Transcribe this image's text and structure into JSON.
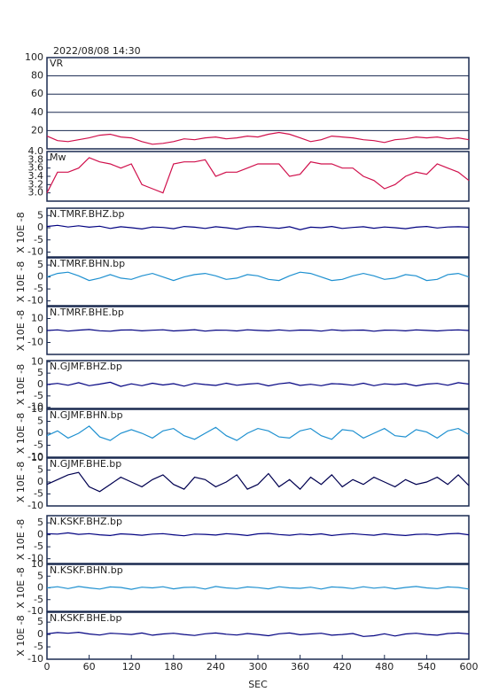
{
  "chart_data": [
    {
      "type": "line",
      "title": "2022/08/08 14:30",
      "xlim": [
        0,
        600
      ],
      "ylim": [
        0,
        100
      ],
      "yticks": [
        20,
        40,
        60,
        80,
        100
      ],
      "grid": true,
      "x": [
        0,
        15,
        30,
        45,
        60,
        75,
        90,
        105,
        120,
        135,
        150,
        165,
        180,
        195,
        210,
        225,
        240,
        255,
        270,
        285,
        300,
        315,
        330,
        345,
        360,
        375,
        390,
        405,
        420,
        435,
        450,
        465,
        480,
        495,
        510,
        525,
        540,
        555,
        570,
        585,
        600
      ],
      "series": [
        {
          "name": "VR",
          "color": "#d0104c",
          "values": [
            14,
            9,
            8,
            10,
            12,
            15,
            16,
            13,
            12,
            8,
            5,
            6,
            8,
            11,
            10,
            12,
            13,
            11,
            12,
            14,
            13,
            16,
            18,
            16,
            12,
            8,
            10,
            14,
            13,
            12,
            10,
            9,
            7,
            10,
            11,
            13,
            12,
            13,
            11,
            12,
            10
          ]
        }
      ]
    },
    {
      "type": "line",
      "xlim": [
        0,
        600
      ],
      "ylim": [
        2.8,
        4.0
      ],
      "yticks": [
        {
          "value": 3,
          "label": "3.0"
        },
        3.2,
        3.4,
        3.6,
        3.8,
        {
          "value": 4,
          "label": "4.0"
        }
      ],
      "x": [
        0,
        15,
        30,
        45,
        60,
        75,
        90,
        105,
        120,
        135,
        150,
        165,
        180,
        195,
        210,
        225,
        240,
        255,
        270,
        285,
        300,
        315,
        330,
        345,
        360,
        375,
        390,
        405,
        420,
        435,
        450,
        465,
        480,
        495,
        510,
        525,
        540,
        555,
        570,
        585,
        600
      ],
      "series": [
        {
          "name": "Mw",
          "color": "#d0104c",
          "values": [
            3.0,
            3.5,
            3.5,
            3.6,
            3.85,
            3.75,
            3.7,
            3.6,
            3.7,
            3.2,
            3.1,
            3.0,
            3.7,
            3.75,
            3.75,
            3.8,
            3.4,
            3.5,
            3.5,
            3.6,
            3.7,
            3.7,
            3.7,
            3.4,
            3.45,
            3.75,
            3.7,
            3.7,
            3.6,
            3.6,
            3.4,
            3.3,
            3.1,
            3.2,
            3.4,
            3.5,
            3.45,
            3.7,
            3.6,
            3.5,
            3.3
          ]
        }
      ]
    },
    {
      "type": "line",
      "y_label": "X 10E -8",
      "xlim": [
        0,
        600
      ],
      "ylim": [
        -12,
        8
      ],
      "yticks": [
        -10,
        -5,
        0,
        5
      ],
      "x": [
        0,
        15,
        30,
        45,
        60,
        75,
        90,
        105,
        120,
        135,
        150,
        165,
        180,
        195,
        210,
        225,
        240,
        255,
        270,
        285,
        300,
        315,
        330,
        345,
        360,
        375,
        390,
        405,
        420,
        435,
        450,
        465,
        480,
        495,
        510,
        525,
        540,
        555,
        570,
        585,
        600
      ],
      "series": [
        {
          "name": "N.TMRF.BHZ.bp",
          "color": "#000080",
          "values": [
            0.5,
            1,
            0.3,
            0.8,
            0.2,
            0.6,
            -0.3,
            0.4,
            0,
            -0.5,
            0.3,
            0.1,
            -0.4,
            0.5,
            0.2,
            -0.3,
            0.4,
            0,
            -0.6,
            0.3,
            0.5,
            0.1,
            -0.2,
            0.4,
            -0.8,
            0.2,
            0,
            0.5,
            -0.3,
            0.1,
            0.4,
            -0.2,
            0.3,
            0,
            -0.4,
            0.2,
            0.5,
            -0.1,
            0.3,
            0.4,
            0.2
          ]
        }
      ]
    },
    {
      "type": "line",
      "y_label": "X 10E -8",
      "xlim": [
        0,
        600
      ],
      "ylim": [
        -12,
        8
      ],
      "yticks": [
        -10,
        -5,
        0,
        5
      ],
      "x": [
        0,
        15,
        30,
        45,
        60,
        75,
        90,
        105,
        120,
        135,
        150,
        165,
        180,
        195,
        210,
        225,
        240,
        255,
        270,
        285,
        300,
        315,
        330,
        345,
        360,
        375,
        390,
        405,
        420,
        435,
        450,
        465,
        480,
        495,
        510,
        525,
        540,
        555,
        570,
        585,
        600
      ],
      "series": [
        {
          "name": "N.TMRF.BHN.bp",
          "color": "#1e90d0",
          "values": [
            0,
            1.5,
            2,
            0.5,
            -1.5,
            -0.5,
            1,
            -0.5,
            -1,
            0.5,
            1.5,
            0,
            -1.5,
            0,
            1,
            1.5,
            0.5,
            -1,
            -0.5,
            1,
            0.5,
            -1,
            -1.5,
            0.5,
            2,
            1.5,
            0,
            -1.5,
            -1,
            0.5,
            1.5,
            0.5,
            -1,
            -0.5,
            1,
            0.5,
            -1.5,
            -1,
            1,
            1.5,
            0
          ]
        }
      ]
    },
    {
      "type": "line",
      "y_label": "X 10E -8",
      "xlim": [
        0,
        600
      ],
      "ylim": [
        -20,
        20
      ],
      "yticks": [
        -10,
        0,
        10
      ],
      "x": [
        0,
        15,
        30,
        45,
        60,
        75,
        90,
        105,
        120,
        135,
        150,
        165,
        180,
        195,
        210,
        225,
        240,
        255,
        270,
        285,
        300,
        315,
        330,
        345,
        360,
        375,
        390,
        405,
        420,
        435,
        450,
        465,
        480,
        495,
        510,
        525,
        540,
        555,
        570,
        585,
        600
      ],
      "series": [
        {
          "name": "N.TMRF.BHE.bp",
          "color": "#000080",
          "values": [
            0,
            0.5,
            -0.5,
            0.3,
            0.8,
            -0.2,
            -0.6,
            0.4,
            0.5,
            -0.3,
            0.2,
            0.6,
            -0.4,
            0.1,
            0.7,
            -0.5,
            0.3,
            0.2,
            -0.4,
            0.6,
            0.1,
            -0.3,
            0.5,
            -0.2,
            0.4,
            0.3,
            -0.5,
            0.6,
            -0.1,
            0.2,
            0.4,
            -0.6,
            0.3,
            0.2,
            -0.3,
            0.5,
            0.1,
            -0.4,
            0.2,
            0.5,
            0
          ]
        }
      ]
    },
    {
      "type": "line",
      "y_label": "X 10E -8",
      "xlim": [
        0,
        600
      ],
      "ylim": [
        -10.5,
        10.5
      ],
      "yticks": [
        -10,
        -5,
        0,
        5,
        10
      ],
      "x": [
        0,
        15,
        30,
        45,
        60,
        75,
        90,
        105,
        120,
        135,
        150,
        165,
        180,
        195,
        210,
        225,
        240,
        255,
        270,
        285,
        300,
        315,
        330,
        345,
        360,
        375,
        390,
        405,
        420,
        435,
        450,
        465,
        480,
        495,
        510,
        525,
        540,
        555,
        570,
        585,
        600
      ],
      "series": [
        {
          "name": "N.GJMF.BHZ.bp",
          "color": "#000080",
          "values": [
            0,
            0.5,
            -0.3,
            0.8,
            -0.5,
            0.2,
            1,
            -0.8,
            0.3,
            -0.5,
            0.6,
            -0.2,
            0.4,
            -0.7,
            0.5,
            0,
            -0.4,
            0.6,
            -0.3,
            0.2,
            0.5,
            -0.6,
            0.3,
            0.8,
            -0.4,
            0.1,
            -0.5,
            0.4,
            0.2,
            -0.3,
            0.6,
            -0.5,
            0.3,
            0,
            0.4,
            -0.6,
            0.2,
            0.5,
            -0.3,
            0.8,
            0.2
          ]
        }
      ]
    },
    {
      "type": "line",
      "y_label": "X 10E -8",
      "xlim": [
        0,
        600
      ],
      "ylim": [
        -10,
        10
      ],
      "yticks": [
        -10,
        -5,
        0,
        5,
        10
      ],
      "x": [
        0,
        15,
        30,
        45,
        60,
        75,
        90,
        105,
        120,
        135,
        150,
        165,
        180,
        195,
        210,
        225,
        240,
        255,
        270,
        285,
        300,
        315,
        330,
        345,
        360,
        375,
        390,
        405,
        420,
        435,
        450,
        465,
        480,
        495,
        510,
        525,
        540,
        555,
        570,
        585,
        600
      ],
      "series": [
        {
          "name": "N.GJMF.BHN.bp",
          "color": "#1e90d0",
          "values": [
            -1,
            1,
            -2,
            0,
            3,
            -1.5,
            -3,
            0,
            1.5,
            0,
            -2,
            1,
            2,
            -1,
            -2.5,
            0,
            2.5,
            -1,
            -3,
            0,
            2,
            1,
            -1.5,
            -2,
            1,
            2,
            -1,
            -2.5,
            1.5,
            1,
            -2,
            0,
            2,
            -1,
            -1.5,
            1.5,
            0.5,
            -2,
            1,
            2,
            -0.5
          ]
        }
      ]
    },
    {
      "type": "line",
      "y_label": "X 10E -8",
      "xlim": [
        0,
        600
      ],
      "ylim": [
        -10,
        10
      ],
      "yticks": [
        -10,
        -5,
        0,
        5,
        10
      ],
      "x": [
        0,
        15,
        30,
        45,
        60,
        75,
        90,
        105,
        120,
        135,
        150,
        165,
        180,
        195,
        210,
        225,
        240,
        255,
        270,
        285,
        300,
        315,
        330,
        345,
        360,
        375,
        390,
        405,
        420,
        435,
        450,
        465,
        480,
        495,
        510,
        525,
        540,
        555,
        570,
        585,
        600
      ],
      "series": [
        {
          "name": "N.GJMF.BHE.bp",
          "color": "#000050",
          "values": [
            -1,
            1,
            3,
            4,
            -2,
            -4,
            -1,
            2,
            0,
            -2,
            1,
            3,
            -1,
            -3,
            2,
            1,
            -2,
            0,
            3,
            -3,
            -1,
            3.5,
            -2,
            1,
            -3,
            2,
            -1,
            3,
            -2,
            1,
            -1,
            2,
            0,
            -2,
            1,
            -1,
            0,
            2,
            -1,
            3,
            -1.5
          ]
        }
      ]
    },
    {
      "type": "line",
      "y_label": "X 10E -8",
      "xlim": [
        0,
        600
      ],
      "ylim": [
        -12,
        8
      ],
      "yticks": [
        -10,
        -5,
        0,
        5
      ],
      "x": [
        0,
        15,
        30,
        45,
        60,
        75,
        90,
        105,
        120,
        135,
        150,
        165,
        180,
        195,
        210,
        225,
        240,
        255,
        270,
        285,
        300,
        315,
        330,
        345,
        360,
        375,
        390,
        405,
        420,
        435,
        450,
        465,
        480,
        495,
        510,
        525,
        540,
        555,
        570,
        585,
        600
      ],
      "series": [
        {
          "name": "N.KSKF.BHZ.bp",
          "color": "#000080",
          "values": [
            0.5,
            0.3,
            0.8,
            0.2,
            0.5,
            0,
            -0.3,
            0.4,
            0.2,
            -0.2,
            0.3,
            0.5,
            0,
            -0.4,
            0.3,
            0.2,
            -0.1,
            0.5,
            0.2,
            -0.3,
            0.4,
            0.6,
            0.1,
            -0.2,
            0.3,
            0,
            0.4,
            -0.3,
            0.2,
            0.5,
            0.1,
            -0.2,
            0.4,
            0,
            -0.3,
            0.2,
            0.3,
            -0.1,
            0.4,
            0.6,
            0
          ]
        }
      ]
    },
    {
      "type": "line",
      "y_label": "X 10E -8",
      "xlim": [
        0,
        600
      ],
      "ylim": [
        -10,
        10
      ],
      "yticks": [
        -10,
        -5,
        0,
        5,
        10
      ],
      "x": [
        0,
        15,
        30,
        45,
        60,
        75,
        90,
        105,
        120,
        135,
        150,
        165,
        180,
        195,
        210,
        225,
        240,
        255,
        270,
        285,
        300,
        315,
        330,
        345,
        360,
        375,
        390,
        405,
        420,
        435,
        450,
        465,
        480,
        495,
        510,
        525,
        540,
        555,
        570,
        585,
        600
      ],
      "series": [
        {
          "name": "N.KSKF.BHN.bp",
          "color": "#1e90d0",
          "values": [
            0,
            0.5,
            -0.3,
            0.6,
            0,
            -0.5,
            0.4,
            0.2,
            -0.6,
            0.3,
            0,
            0.5,
            -0.4,
            0.2,
            0.3,
            -0.5,
            0.6,
            0,
            -0.3,
            0.4,
            0.1,
            -0.4,
            0.5,
            0,
            -0.2,
            0.3,
            -0.5,
            0.4,
            0.2,
            -0.3,
            0.5,
            -0.1,
            0.3,
            -0.4,
            0.2,
            0.6,
            0,
            -0.3,
            0.4,
            0.2,
            -0.5
          ]
        }
      ]
    },
    {
      "type": "line",
      "y_label": "X 10E -8",
      "x_label": "SEC",
      "xlim": [
        0,
        600
      ],
      "xticks": [
        0,
        60,
        120,
        180,
        240,
        300,
        360,
        420,
        480,
        540,
        600
      ],
      "ylim": [
        -10,
        9
      ],
      "yticks": [
        -10,
        -5,
        0,
        5
      ],
      "x": [
        0,
        15,
        30,
        45,
        60,
        75,
        90,
        105,
        120,
        135,
        150,
        165,
        180,
        195,
        210,
        225,
        240,
        255,
        270,
        285,
        300,
        315,
        330,
        345,
        360,
        375,
        390,
        405,
        420,
        435,
        450,
        465,
        480,
        495,
        510,
        525,
        540,
        555,
        570,
        585,
        600
      ],
      "series": [
        {
          "name": "N.KSKF.BHE.bp",
          "color": "#000080",
          "values": [
            0.3,
            0.8,
            0.5,
            0.9,
            0.2,
            -0.2,
            0.5,
            0.3,
            0,
            0.6,
            -0.3,
            0.2,
            0.5,
            0,
            -0.4,
            0.3,
            0.6,
            0.1,
            -0.2,
            0.4,
            0,
            -0.5,
            0.3,
            0.6,
            -0.1,
            0.2,
            0.5,
            -0.3,
            0,
            0.4,
            -0.8,
            -0.5,
            0.3,
            -0.6,
            0.2,
            0.5,
            0,
            -0.3,
            0.4,
            0.6,
            0.2
          ]
        }
      ]
    }
  ]
}
